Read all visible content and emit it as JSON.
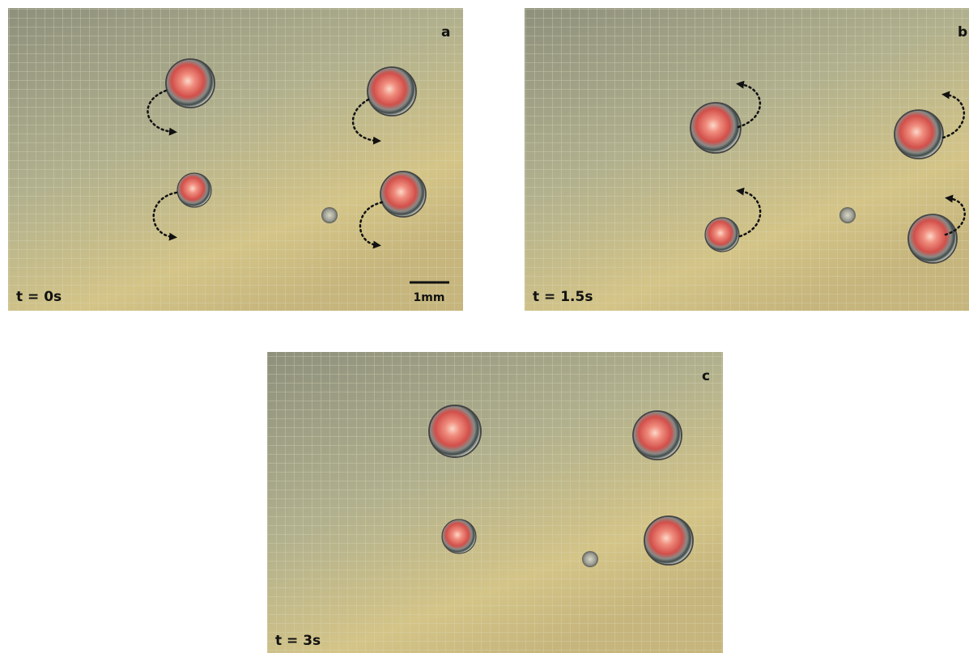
{
  "panels": [
    {
      "label": "a",
      "time": "t = 0s",
      "scale_bar": "1mm"
    },
    {
      "label": "b",
      "time": "t = 1.5s"
    },
    {
      "label": "c",
      "time": "t = 3s"
    }
  ]
}
